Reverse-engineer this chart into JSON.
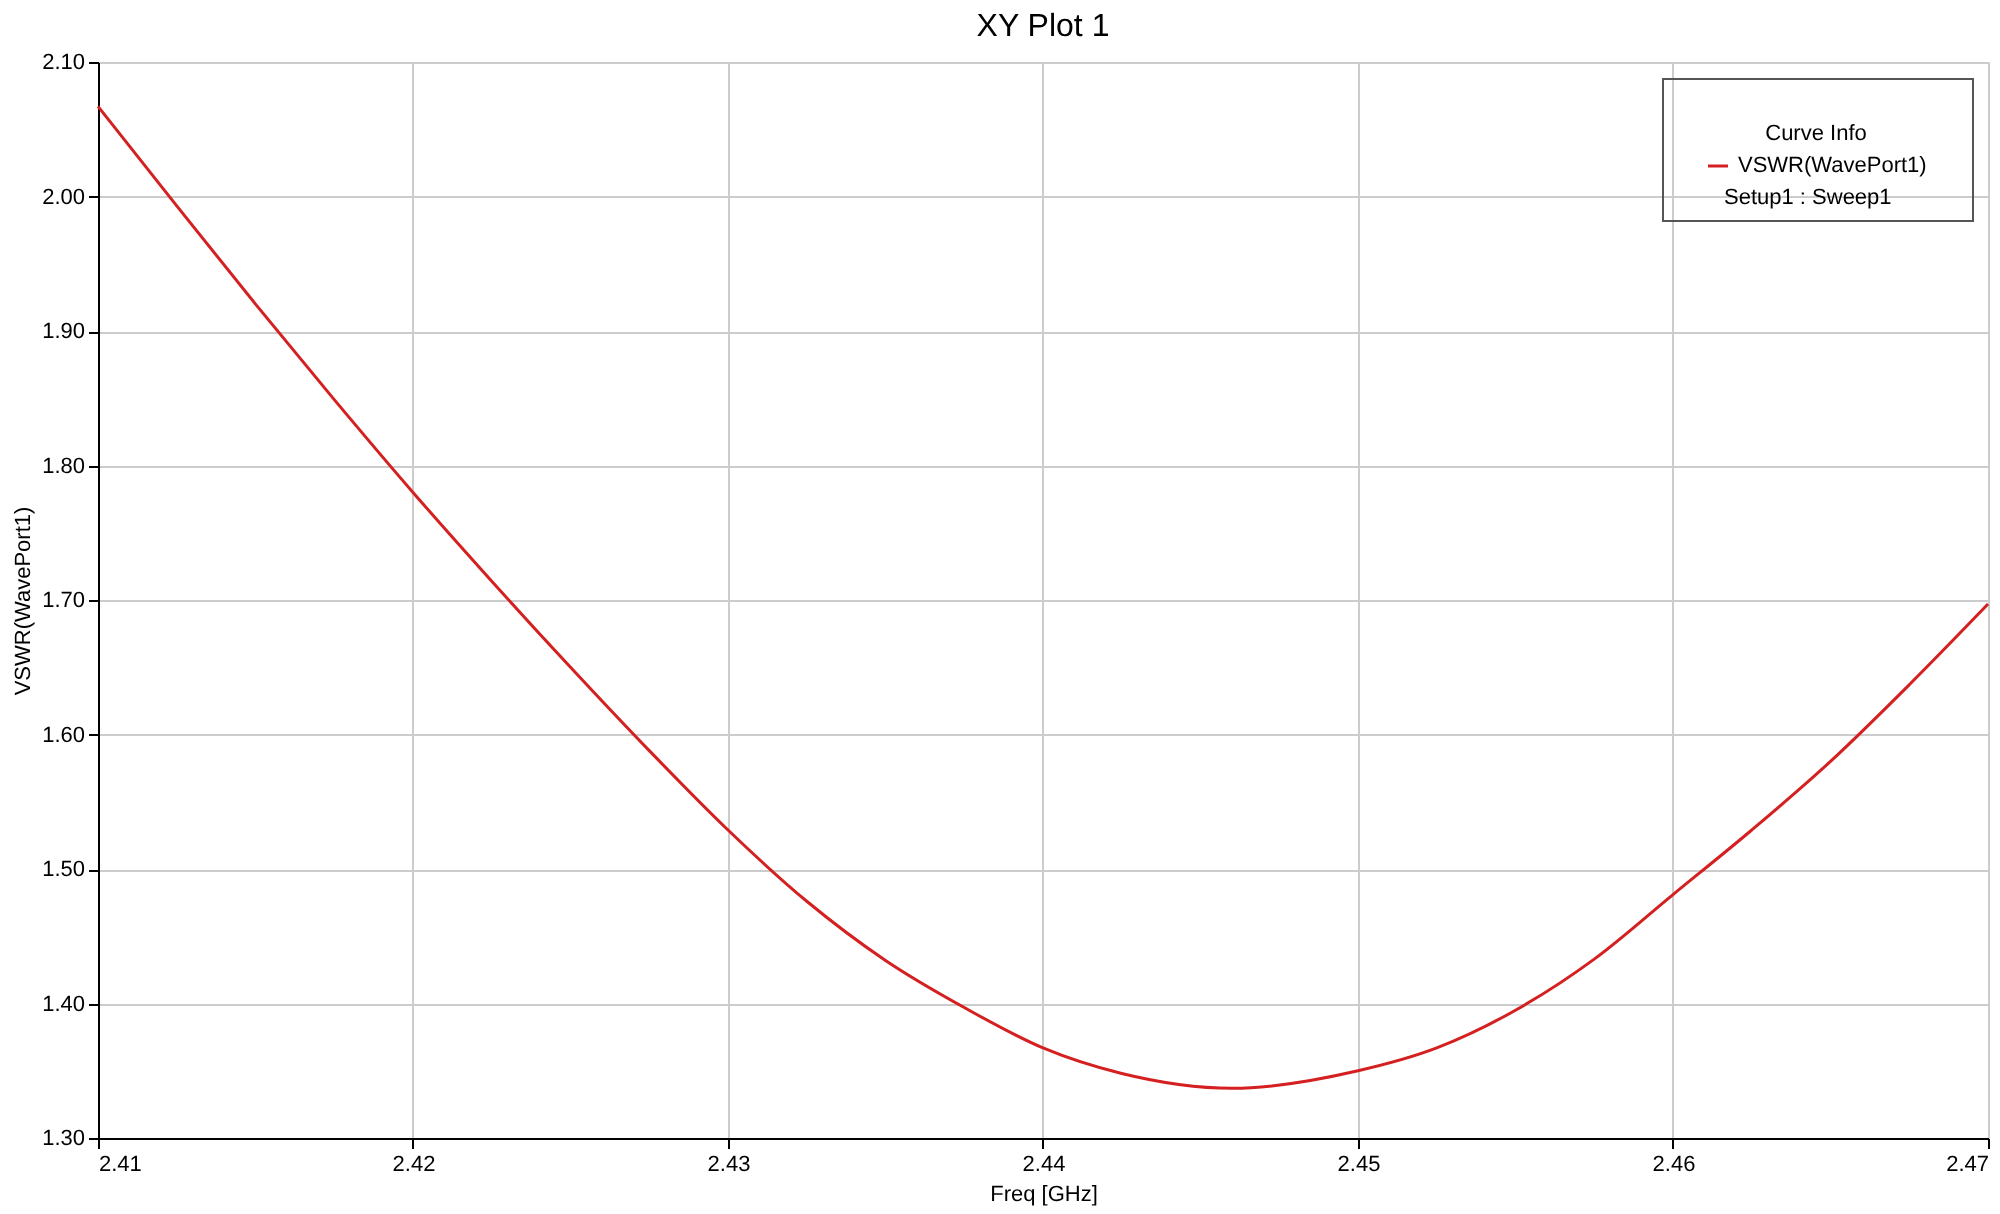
{
  "chart_data": {
    "type": "line",
    "title": "XY Plot 1",
    "xlabel": "Freq [GHz]",
    "ylabel": "VSWR(WavePort1)",
    "legend_title": "Curve Info",
    "x": [
      2.41,
      2.4125,
      2.415,
      2.4175,
      2.42,
      2.4225,
      2.425,
      2.4275,
      2.43,
      2.4325,
      2.435,
      2.4375,
      2.44,
      2.4425,
      2.446,
      2.45,
      2.4525,
      2.455,
      2.4575,
      2.46,
      2.4625,
      2.465,
      2.4675,
      2.47
    ],
    "series": [
      {
        "name": "VSWR(WavePort1)",
        "color": "#d42020",
        "values": [
          2.067,
          1.993,
          1.92,
          1.849,
          1.78,
          1.714,
          1.65,
          1.588,
          1.529,
          1.476,
          1.432,
          1.397,
          1.367,
          1.348,
          1.337,
          1.35,
          1.367,
          1.395,
          1.433,
          1.481,
          1.529,
          1.58,
          1.637,
          1.697
        ]
      }
    ],
    "xlim": [
      2.41,
      2.47
    ],
    "xticks": [
      2.41,
      2.42,
      2.43,
      2.44,
      2.45,
      2.46,
      2.47
    ],
    "ylim": [
      1.3,
      2.1
    ],
    "yticks": [
      {
        "value": 1.3,
        "label": "1.30"
      },
      {
        "value": 1.4,
        "label": "1.40"
      },
      {
        "value": 1.5,
        "label": "1.50"
      },
      {
        "value": 1.6,
        "label": "1.60"
      },
      {
        "value": 1.7,
        "label": "1.70"
      },
      {
        "value": 1.8,
        "label": "1.80"
      },
      {
        "value": 1.9,
        "label": "1.90"
      },
      {
        "value": 2.0,
        "label": "2.00"
      },
      {
        "value": 2.1,
        "label": "2.10"
      }
    ],
    "grid": true,
    "legend": "top right",
    "marker": "none",
    "line_style": "solid",
    "annotations": [
      "Setup1 : Sweep1"
    ]
  }
}
